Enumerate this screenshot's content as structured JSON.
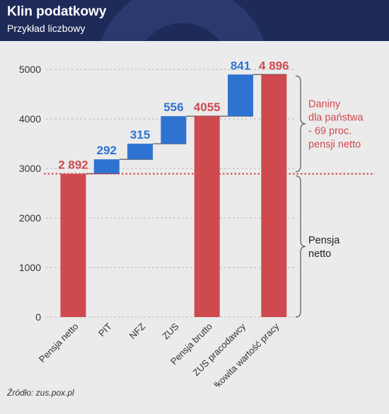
{
  "header": {
    "title": "Klin podatkowy",
    "subtitle": "Przykład liczbowy"
  },
  "source": "Źródło: zus.pox.pl",
  "colors": {
    "header_bg": "#1e2b59",
    "total_bar": "#cf4a4f",
    "increment_bar": "#2f73d1",
    "total_label": "#cf4a4f",
    "increment_label": "#2f73d1",
    "annotation_red": "#cf4a4f",
    "annotation_dark": "#222222"
  },
  "chart_data": {
    "type": "bar",
    "subtype": "waterfall",
    "categories": [
      "Pensja netto",
      "PIT",
      "NFZ",
      "ZUS",
      "Pensja brutto",
      "ZUS pracodawcy",
      "Całkowita wartość pracy"
    ],
    "bars": [
      {
        "category": "Pensja netto",
        "kind": "total",
        "start": 0,
        "end": 2892,
        "label": "2 892"
      },
      {
        "category": "PIT",
        "kind": "increment",
        "start": 2892,
        "end": 3184,
        "label": "292"
      },
      {
        "category": "NFZ",
        "kind": "increment",
        "start": 3184,
        "end": 3499,
        "label": "315"
      },
      {
        "category": "ZUS",
        "kind": "increment",
        "start": 3499,
        "end": 4055,
        "label": "556"
      },
      {
        "category": "Pensja brutto",
        "kind": "total",
        "start": 0,
        "end": 4055,
        "label": "4055"
      },
      {
        "category": "ZUS pracodawcy",
        "kind": "increment",
        "start": 4055,
        "end": 4896,
        "label": "841"
      },
      {
        "category": "Całkowita wartość pracy",
        "kind": "total",
        "start": 0,
        "end": 4896,
        "label": "4 896"
      }
    ],
    "ylim": [
      0,
      5000
    ],
    "yticks": [
      0,
      1000,
      2000,
      3000,
      4000,
      5000
    ],
    "grid": "horizontal dashed",
    "reference_line": {
      "value": 2892,
      "style": "dotted",
      "color": "#cf4a4f"
    },
    "annotations": [
      {
        "lines": [
          "Daniny",
          "dla państwa",
          "- 69 proc.",
          "pensji netto"
        ],
        "from": 2892,
        "to": 4896,
        "color": "red"
      },
      {
        "lines": [
          "Pensja",
          "netto"
        ],
        "from": 0,
        "to": 2892,
        "color": "dark"
      }
    ]
  }
}
